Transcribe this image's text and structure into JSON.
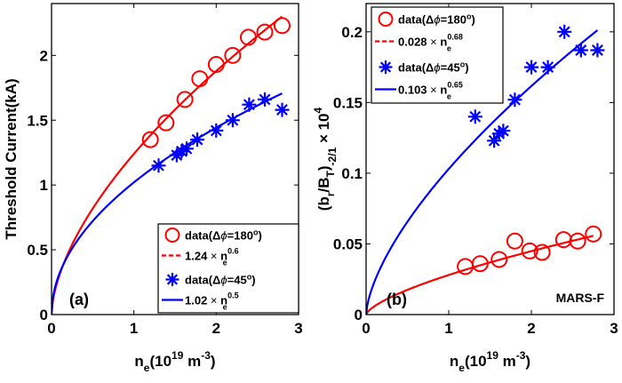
{
  "chart_data": [
    {
      "type": "line",
      "panel_label": "(a)",
      "title": "",
      "xlabel": {
        "base": "n",
        "sub": "e",
        "rest": "(10",
        "sup": "19",
        "unit": " m",
        "unit_sup": "-3",
        "close": ")"
      },
      "ylabel": "Threshold Current(kA)",
      "xlim": [
        0,
        3
      ],
      "ylim": [
        0,
        2.4
      ],
      "xticks": [
        0,
        1,
        2,
        3
      ],
      "xtick_labels": [
        "0",
        "1",
        "2",
        "3"
      ],
      "yticks": [
        0,
        0.5,
        1,
        1.5,
        2
      ],
      "ytick_labels": [
        "0",
        "0.5",
        "1",
        "1.5",
        "2"
      ],
      "grid": false,
      "legend_position": "bottom-right",
      "series": [
        {
          "name": "data(Δϕ=180°)",
          "legend": {
            "prefix": "data(Δ",
            "phi": "ϕ",
            "suffix": "=180",
            "sup": "o",
            "close": ")"
          },
          "kind": "marker-circle",
          "color": "#ff0000",
          "x": [
            1.2,
            1.39,
            1.62,
            1.8,
            2.0,
            2.2,
            2.39,
            2.59,
            2.8
          ],
          "y": [
            1.35,
            1.48,
            1.66,
            1.82,
            1.93,
            2.0,
            2.14,
            2.18,
            2.23
          ]
        },
        {
          "name": "1.24 × n_e^0.6",
          "legend": {
            "coef": "1.24",
            "times": " × ",
            "base": "n",
            "sub": "e",
            "sup": "0.6"
          },
          "kind": "line-dashed",
          "color": "#ff0000",
          "coef": 1.24,
          "exponent": 0.6,
          "fit_xrange": [
            0,
            2.8
          ]
        },
        {
          "name": "data(Δϕ=45°)",
          "legend": {
            "prefix": "data(Δ",
            "phi": "ϕ",
            "suffix": "=45",
            "sup": "o",
            "close": ")"
          },
          "kind": "marker-star",
          "color": "#0000ff",
          "x": [
            1.3,
            1.52,
            1.58,
            1.64,
            1.77,
            2.0,
            2.2,
            2.4,
            2.59,
            2.8
          ],
          "y": [
            1.15,
            1.23,
            1.26,
            1.28,
            1.35,
            1.42,
            1.5,
            1.62,
            1.66,
            1.58
          ]
        },
        {
          "name": "1.02 × n_e^0.5",
          "legend": {
            "coef": "1.02",
            "times": " × ",
            "base": "n",
            "sub": "e",
            "sup": "0.5"
          },
          "kind": "line-solid",
          "color": "#0000ff",
          "coef": 1.02,
          "exponent": 0.5,
          "fit_xrange": [
            0,
            2.8
          ]
        }
      ]
    },
    {
      "type": "line",
      "panel_label": "(b)",
      "annotation": "MARS-F",
      "title": "",
      "xlabel": {
        "base": "n",
        "sub": "e",
        "rest": "(10",
        "sup": "19",
        "unit": " m",
        "unit_sup": "-3",
        "close": ")"
      },
      "ylabel": {
        "open": "(b",
        "sub1": "r",
        "mid": "/B",
        "sub2": "T",
        "close": ")",
        "sub3": "-2/1",
        "times": " × 10",
        "sup": "4"
      },
      "xlim": [
        0,
        3
      ],
      "ylim": [
        0,
        0.22
      ],
      "xticks": [
        0,
        1,
        2,
        3
      ],
      "xtick_labels": [
        "0",
        "1",
        "2",
        "3"
      ],
      "yticks": [
        0,
        0.05,
        0.1,
        0.15,
        0.2
      ],
      "ytick_labels": [
        "0",
        "0.05",
        "0.1",
        "0.15",
        "0.2"
      ],
      "grid": false,
      "legend_position": "top-left",
      "series": [
        {
          "name": "data(Δϕ=180°)",
          "legend": {
            "prefix": "data(Δ",
            "phi": "ϕ",
            "suffix": "=180",
            "sup": "o",
            "close": ")"
          },
          "kind": "marker-circle",
          "color": "#ff0000",
          "x": [
            1.2,
            1.38,
            1.61,
            1.8,
            1.98,
            2.13,
            2.39,
            2.56,
            2.75
          ],
          "y": [
            0.034,
            0.036,
            0.039,
            0.052,
            0.045,
            0.044,
            0.053,
            0.052,
            0.057
          ]
        },
        {
          "name": "0.028 × n_e^0.68",
          "legend": {
            "coef": "0.028",
            "times": " × ",
            "base": "n",
            "sub": "e",
            "sup": "0.68"
          },
          "kind": "line-dashed",
          "color": "#ff0000",
          "coef": 0.028,
          "exponent": 0.68,
          "fit_xrange": [
            0,
            2.75
          ]
        },
        {
          "name": "data(Δϕ=45°)",
          "legend": {
            "prefix": "data(Δ",
            "phi": "ϕ",
            "suffix": "=45",
            "sup": "o",
            "close": ")"
          },
          "kind": "marker-star",
          "color": "#0000ff",
          "x": [
            1.32,
            1.55,
            1.61,
            1.66,
            1.8,
            2.0,
            2.2,
            2.4,
            2.6,
            2.8
          ],
          "y": [
            0.14,
            0.123,
            0.128,
            0.13,
            0.152,
            0.175,
            0.175,
            0.2,
            0.187,
            0.187
          ]
        },
        {
          "name": "0.103 × n_e^0.65",
          "legend": {
            "coef": "0.103",
            "times": " × ",
            "base": "n",
            "sub": "e",
            "sup": "0.65"
          },
          "kind": "line-solid",
          "color": "#0000ff",
          "coef": 0.103,
          "exponent": 0.65,
          "fit_xrange": [
            0,
            2.8
          ]
        }
      ]
    }
  ]
}
